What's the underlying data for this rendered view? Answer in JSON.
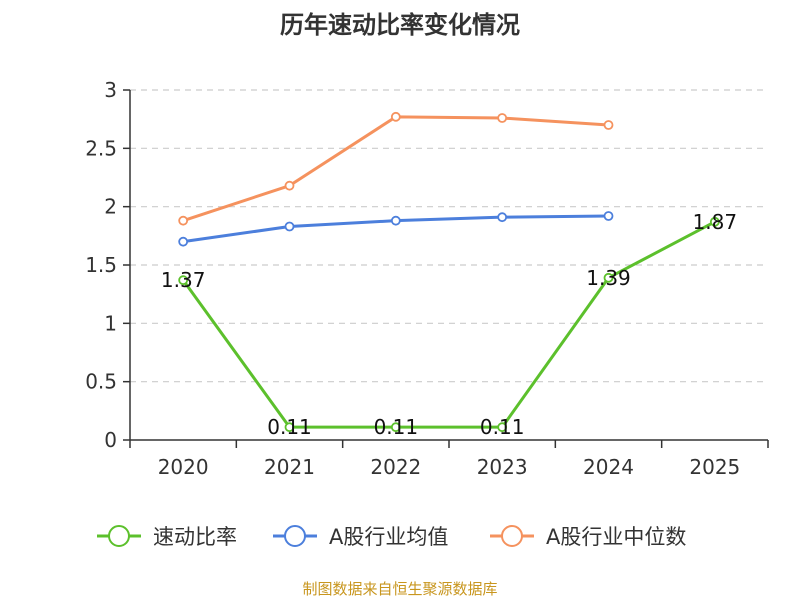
{
  "chart_data": {
    "type": "line",
    "title": "历年速动比率变化情况",
    "categories": [
      "2020",
      "2021",
      "2022",
      "2023",
      "2024",
      "2025"
    ],
    "ylim": [
      0,
      3
    ],
    "yticks": [
      "0",
      "0.5",
      "1",
      "1.5",
      "2",
      "2.5",
      "3"
    ],
    "grid": true,
    "legend_position": "bottom",
    "series": [
      {
        "name": "速动比率",
        "color": "#5cc02c",
        "values": [
          1.37,
          0.11,
          0.11,
          0.11,
          1.39,
          1.87
        ],
        "labels": [
          "1.37",
          "0.11",
          "0.11",
          "0.11",
          "1.39",
          "1.87"
        ]
      },
      {
        "name": "A股行业均值",
        "color": "#4c7fdc",
        "values": [
          1.7,
          1.83,
          1.88,
          1.91,
          1.92,
          null
        ]
      },
      {
        "name": "A股行业中位数",
        "color": "#f5925e",
        "values": [
          1.88,
          2.18,
          2.77,
          2.76,
          2.7,
          null
        ]
      }
    ]
  },
  "source": "制图数据来自恒生聚源数据库"
}
